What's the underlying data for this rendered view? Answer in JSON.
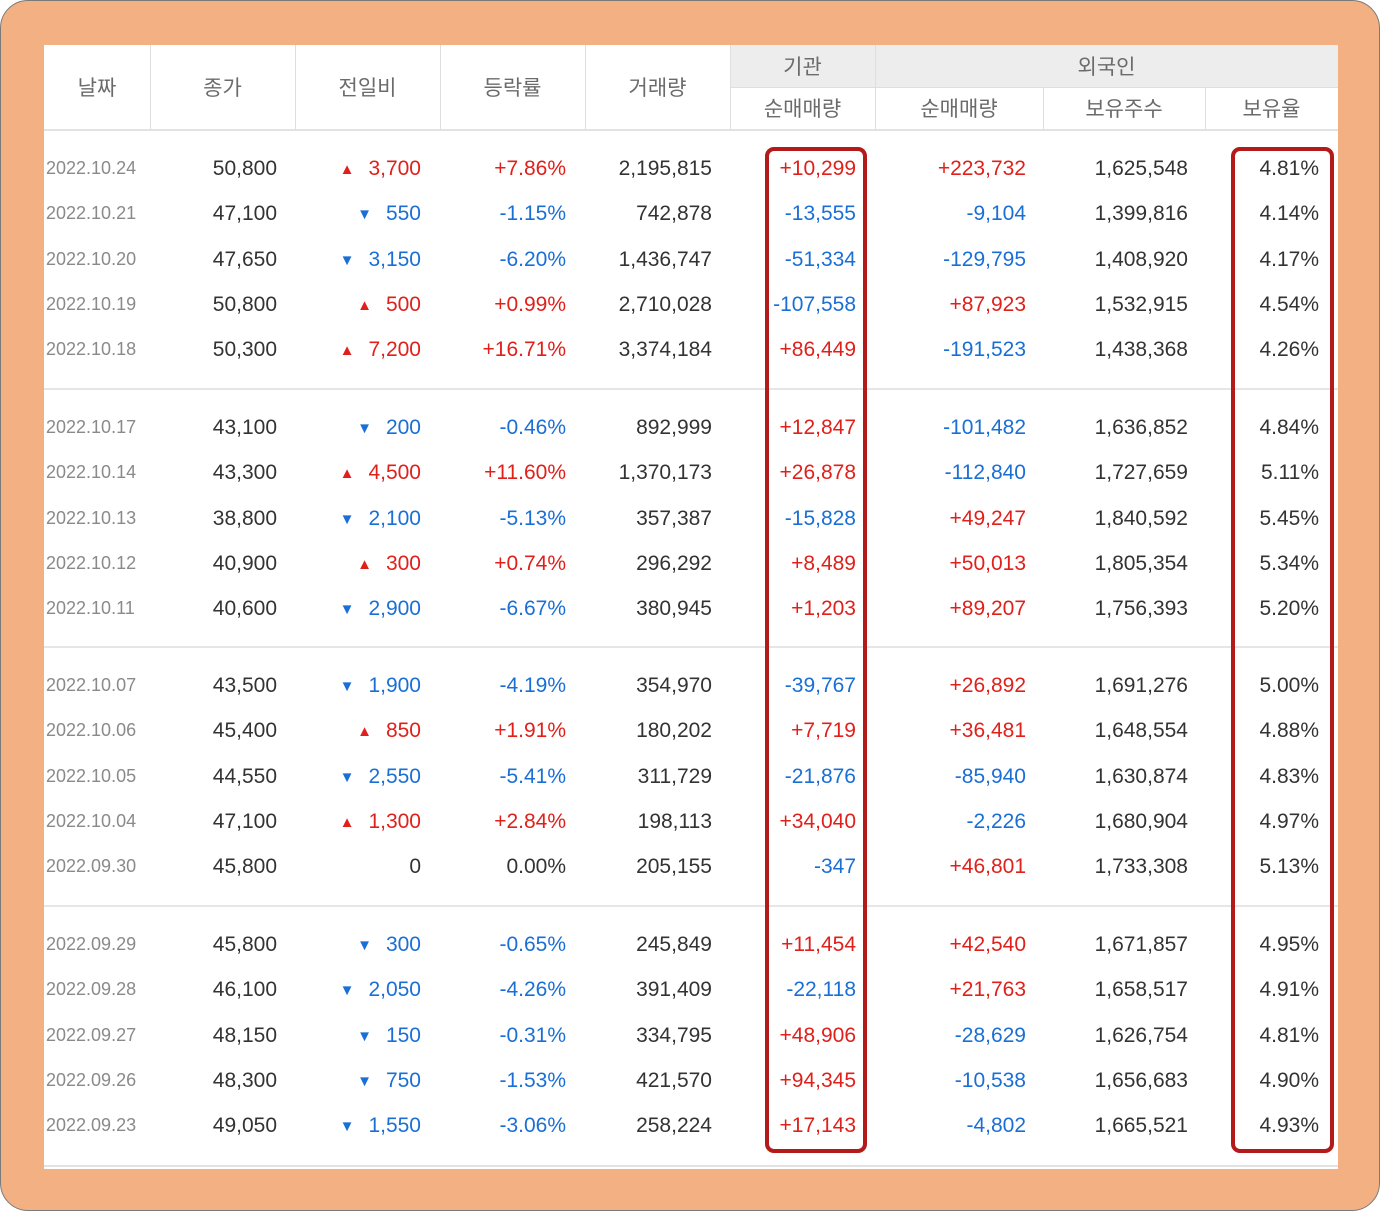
{
  "colors": {
    "frame": "#f3b083",
    "header_group_bg": "#ededed",
    "header_text": "#6b6b6b",
    "rise": "#e0201b",
    "fall": "#1a6fd6",
    "highlight_box": "#b41a1a"
  },
  "icons": {
    "rise": "triangle-up-icon",
    "fall": "triangle-down-icon"
  },
  "header": {
    "date": "날짜",
    "close": "종가",
    "change": "전일비",
    "rate": "등락률",
    "volume": "거래량",
    "institution": "기관",
    "institution_net": "순매매량",
    "foreign": "외국인",
    "foreign_net": "순매매량",
    "foreign_shares": "보유주수",
    "foreign_ratio": "보유율"
  },
  "rows": [
    {
      "date": "2022.10.24",
      "close": "50,800",
      "dir": "up",
      "change": "3,700",
      "rate": "+7.86%",
      "volume": "2,195,815",
      "inst": "+10,299",
      "foreign_net": "+223,732",
      "shares": "1,625,548",
      "ratio": "4.81%"
    },
    {
      "date": "2022.10.21",
      "close": "47,100",
      "dir": "down",
      "change": "550",
      "rate": "-1.15%",
      "volume": "742,878",
      "inst": "-13,555",
      "foreign_net": "-9,104",
      "shares": "1,399,816",
      "ratio": "4.14%"
    },
    {
      "date": "2022.10.20",
      "close": "47,650",
      "dir": "down",
      "change": "3,150",
      "rate": "-6.20%",
      "volume": "1,436,747",
      "inst": "-51,334",
      "foreign_net": "-129,795",
      "shares": "1,408,920",
      "ratio": "4.17%"
    },
    {
      "date": "2022.10.19",
      "close": "50,800",
      "dir": "up",
      "change": "500",
      "rate": "+0.99%",
      "volume": "2,710,028",
      "inst": "-107,558",
      "foreign_net": "+87,923",
      "shares": "1,532,915",
      "ratio": "4.54%"
    },
    {
      "date": "2022.10.18",
      "close": "50,300",
      "dir": "up",
      "change": "7,200",
      "rate": "+16.71%",
      "volume": "3,374,184",
      "inst": "+86,449",
      "foreign_net": "-191,523",
      "shares": "1,438,368",
      "ratio": "4.26%"
    },
    {
      "date": "2022.10.17",
      "close": "43,100",
      "dir": "down",
      "change": "200",
      "rate": "-0.46%",
      "volume": "892,999",
      "inst": "+12,847",
      "foreign_net": "-101,482",
      "shares": "1,636,852",
      "ratio": "4.84%"
    },
    {
      "date": "2022.10.14",
      "close": "43,300",
      "dir": "up",
      "change": "4,500",
      "rate": "+11.60%",
      "volume": "1,370,173",
      "inst": "+26,878",
      "foreign_net": "-112,840",
      "shares": "1,727,659",
      "ratio": "5.11%"
    },
    {
      "date": "2022.10.13",
      "close": "38,800",
      "dir": "down",
      "change": "2,100",
      "rate": "-5.13%",
      "volume": "357,387",
      "inst": "-15,828",
      "foreign_net": "+49,247",
      "shares": "1,840,592",
      "ratio": "5.45%"
    },
    {
      "date": "2022.10.12",
      "close": "40,900",
      "dir": "up",
      "change": "300",
      "rate": "+0.74%",
      "volume": "296,292",
      "inst": "+8,489",
      "foreign_net": "+50,013",
      "shares": "1,805,354",
      "ratio": "5.34%"
    },
    {
      "date": "2022.10.11",
      "close": "40,600",
      "dir": "down",
      "change": "2,900",
      "rate": "-6.67%",
      "volume": "380,945",
      "inst": "+1,203",
      "foreign_net": "+89,207",
      "shares": "1,756,393",
      "ratio": "5.20%"
    },
    {
      "date": "2022.10.07",
      "close": "43,500",
      "dir": "down",
      "change": "1,900",
      "rate": "-4.19%",
      "volume": "354,970",
      "inst": "-39,767",
      "foreign_net": "+26,892",
      "shares": "1,691,276",
      "ratio": "5.00%"
    },
    {
      "date": "2022.10.06",
      "close": "45,400",
      "dir": "up",
      "change": "850",
      "rate": "+1.91%",
      "volume": "180,202",
      "inst": "+7,719",
      "foreign_net": "+36,481",
      "shares": "1,648,554",
      "ratio": "4.88%"
    },
    {
      "date": "2022.10.05",
      "close": "44,550",
      "dir": "down",
      "change": "2,550",
      "rate": "-5.41%",
      "volume": "311,729",
      "inst": "-21,876",
      "foreign_net": "-85,940",
      "shares": "1,630,874",
      "ratio": "4.83%"
    },
    {
      "date": "2022.10.04",
      "close": "47,100",
      "dir": "up",
      "change": "1,300",
      "rate": "+2.84%",
      "volume": "198,113",
      "inst": "+34,040",
      "foreign_net": "-2,226",
      "shares": "1,680,904",
      "ratio": "4.97%"
    },
    {
      "date": "2022.09.30",
      "close": "45,800",
      "dir": "flat",
      "change": "0",
      "rate": "0.00%",
      "volume": "205,155",
      "inst": "-347",
      "foreign_net": "+46,801",
      "shares": "1,733,308",
      "ratio": "5.13%"
    },
    {
      "date": "2022.09.29",
      "close": "45,800",
      "dir": "down",
      "change": "300",
      "rate": "-0.65%",
      "volume": "245,849",
      "inst": "+11,454",
      "foreign_net": "+42,540",
      "shares": "1,671,857",
      "ratio": "4.95%"
    },
    {
      "date": "2022.09.28",
      "close": "46,100",
      "dir": "down",
      "change": "2,050",
      "rate": "-4.26%",
      "volume": "391,409",
      "inst": "-22,118",
      "foreign_net": "+21,763",
      "shares": "1,658,517",
      "ratio": "4.91%"
    },
    {
      "date": "2022.09.27",
      "close": "48,150",
      "dir": "down",
      "change": "150",
      "rate": "-0.31%",
      "volume": "334,795",
      "inst": "+48,906",
      "foreign_net": "-28,629",
      "shares": "1,626,754",
      "ratio": "4.81%"
    },
    {
      "date": "2022.09.26",
      "close": "48,300",
      "dir": "down",
      "change": "750",
      "rate": "-1.53%",
      "volume": "421,570",
      "inst": "+94,345",
      "foreign_net": "-10,538",
      "shares": "1,656,683",
      "ratio": "4.90%"
    },
    {
      "date": "2022.09.23",
      "close": "49,050",
      "dir": "down",
      "change": "1,550",
      "rate": "-3.06%",
      "volume": "258,224",
      "inst": "+17,143",
      "foreign_net": "-4,802",
      "shares": "1,665,521",
      "ratio": "4.93%"
    }
  ]
}
